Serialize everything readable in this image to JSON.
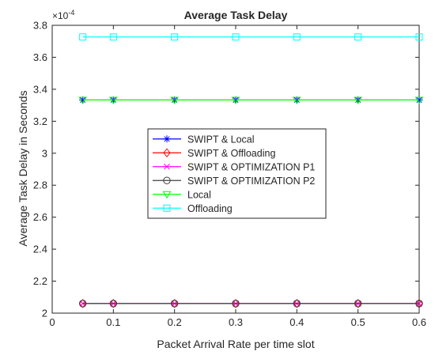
{
  "chart_data": {
    "type": "line",
    "title": "Average Task Delay",
    "xlabel": "Packet Arrival Rate per time slot",
    "ylabel": "Average Task Delay in Seconds",
    "y_multiplier_base": "×10",
    "y_multiplier_exp": "-4",
    "xlim": [
      0,
      0.6
    ],
    "ylim": [
      2.0,
      3.8
    ],
    "x_ticks": [
      0,
      0.1,
      0.2,
      0.3,
      0.4,
      0.5,
      0.6
    ],
    "x_tick_labels": [
      "0",
      "0.1",
      "0.2",
      "0.3",
      "0.4",
      "0.5",
      "0.6"
    ],
    "y_ticks": [
      2.0,
      2.2,
      2.4,
      2.6,
      2.8,
      3.0,
      3.2,
      3.4,
      3.6,
      3.8
    ],
    "y_tick_labels": [
      "2",
      "2.2",
      "2.4",
      "2.6",
      "2.8",
      "3",
      "3.2",
      "3.4",
      "3.6",
      "3.8"
    ],
    "x": [
      0.05,
      0.1,
      0.2,
      0.3,
      0.4,
      0.5,
      0.6
    ],
    "grid": false,
    "legend_position": "center-left",
    "series": [
      {
        "name": "SWIPT & Local",
        "color": "#0000ff",
        "marker": "asterisk",
        "values": [
          3.333,
          3.333,
          3.333,
          3.333,
          3.333,
          3.333,
          3.333
        ]
      },
      {
        "name": "SWIPT & Offloading",
        "color": "#ff0000",
        "marker": "diamond",
        "values": [
          2.06,
          2.06,
          2.06,
          2.06,
          2.06,
          2.06,
          2.06
        ]
      },
      {
        "name": "SWIPT & OPTIMIZATION P1",
        "color": "#ff00ff",
        "marker": "x",
        "values": [
          2.06,
          2.06,
          2.06,
          2.06,
          2.06,
          2.06,
          2.06
        ]
      },
      {
        "name": "SWIPT & OPTIMIZATION P2",
        "color": "#404040",
        "marker": "circle",
        "values": [
          2.06,
          2.06,
          2.06,
          2.06,
          2.06,
          2.06,
          2.06
        ]
      },
      {
        "name": "Local",
        "color": "#00ff00",
        "marker": "triangle-down",
        "values": [
          3.333,
          3.333,
          3.333,
          3.333,
          3.333,
          3.333,
          3.333
        ]
      },
      {
        "name": "Offloading",
        "color": "#00ffff",
        "marker": "square",
        "values": [
          3.727,
          3.727,
          3.727,
          3.727,
          3.727,
          3.727,
          3.727
        ]
      }
    ]
  }
}
